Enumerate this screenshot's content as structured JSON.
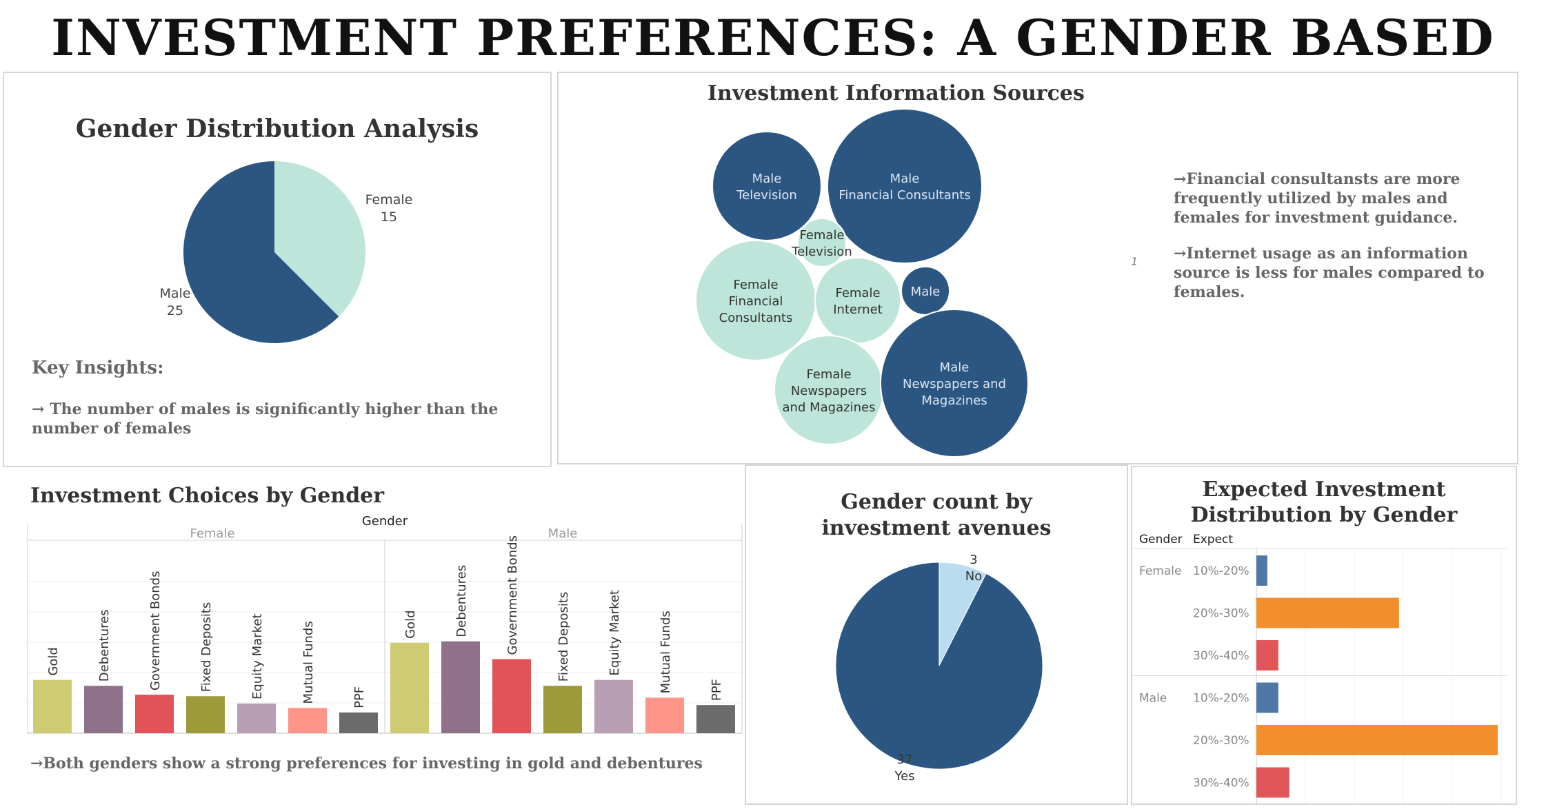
{
  "page": {
    "title": "INVESTMENT PREFERENCES: A GENDER BASED ANALYSIS"
  },
  "colors": {
    "navy": "#2c5682",
    "mint": "#bde5da",
    "lightblue": "#b9dcef",
    "blue": "#4e79a7",
    "orange": "#f28e2b",
    "red": "#e15759",
    "gold": "#cfcb73",
    "debentures": "#8f7189",
    "govbonds": "#e15259",
    "fixed": "#9e9a3c",
    "equity": "#b89fb3",
    "mutual": "#ff9488",
    "ppf": "#6b6b6b"
  },
  "gender_panel": {
    "title": "Gender Distribution Analysis",
    "insights_heading": "Key Insights:",
    "insight": "→ The number of males is significantly higher than the number of females"
  },
  "sources_panel": {
    "title": "Investment Information Sources",
    "stray_mark": "1",
    "notes": [
      "→Financial consultansts are more frequently utilized by males and females for investment guidance.",
      "→Internet usage as an information source is less for males compared to females."
    ]
  },
  "choices_panel": {
    "title": "Investment Choices by Gender",
    "header": "Gender",
    "note": "→Both genders show a strong preferences for investing in gold and debentures"
  },
  "avenues_panel": {
    "title": "Gender count by investment avenues"
  },
  "expect_panel": {
    "title": "Expected Investment Distribution by Gender",
    "col_gender": "Gender",
    "col_expect": "Expect"
  },
  "chart_data": [
    {
      "type": "pie",
      "title": "Gender Distribution Analysis",
      "slices": [
        {
          "label": "Female",
          "value": 15,
          "color": "#bde5da"
        },
        {
          "label": "Male",
          "value": 25,
          "color": "#2c5682"
        }
      ]
    },
    {
      "type": "bubble",
      "title": "Investment Information Sources",
      "bubbles": [
        {
          "label": [
            "Male",
            "Television"
          ],
          "gender": "Male"
        },
        {
          "label": [
            "Male",
            "Financial Consultants"
          ],
          "gender": "Male"
        },
        {
          "label": [
            "Female",
            "Television"
          ],
          "gender": "Female"
        },
        {
          "label": [
            "Female",
            "Financial",
            "Consultants"
          ],
          "gender": "Female"
        },
        {
          "label": [
            "Female",
            "Internet"
          ],
          "gender": "Female"
        },
        {
          "label": [
            "Male"
          ],
          "gender": "Male"
        },
        {
          "label": [
            "Female",
            "Newspapers",
            "and Magazines"
          ],
          "gender": "Female"
        },
        {
          "label": [
            "Male",
            "Newspapers and",
            "Magazines"
          ],
          "gender": "Male"
        }
      ]
    },
    {
      "type": "bar",
      "title": "Investment Choices by Gender",
      "categories": [
        "Gold",
        "Debentures",
        "Government Bonds",
        "Fixed Deposits",
        "Equity Market",
        "Mutual Funds",
        "PPF"
      ],
      "series": [
        {
          "name": "Female",
          "values": [
            18,
            16,
            13,
            12.5,
            10,
            8.5,
            7
          ]
        },
        {
          "name": "Male",
          "values": [
            30.5,
            31,
            25,
            16,
            18,
            12,
            9.5
          ]
        }
      ],
      "ylim": [
        0,
        60
      ]
    },
    {
      "type": "pie",
      "title": "Gender count by investment avenues",
      "slices": [
        {
          "label": "No",
          "value": 3,
          "color": "#b9dcef"
        },
        {
          "label": "Yes",
          "value": 37,
          "color": "#2c5682"
        }
      ]
    },
    {
      "type": "bar",
      "orientation": "horizontal",
      "title": "Expected Investment Distribution by Gender",
      "groups": [
        {
          "gender": "Female",
          "rows": [
            {
              "expect": "10%-20%",
              "value": 2
            },
            {
              "expect": "20%-30%",
              "value": 26
            },
            {
              "expect": "30%-40%",
              "value": 4
            }
          ]
        },
        {
          "gender": "Male",
          "rows": [
            {
              "expect": "10%-20%",
              "value": 4
            },
            {
              "expect": "20%-30%",
              "value": 44
            },
            {
              "expect": "30%-40%",
              "value": 6
            }
          ]
        }
      ],
      "xlim": [
        0,
        45
      ]
    }
  ]
}
